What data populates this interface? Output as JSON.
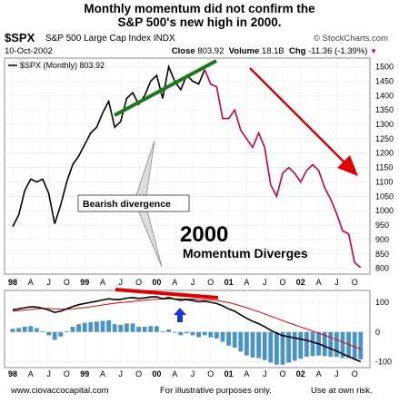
{
  "title_line1": "Monthly momentum did not confirm the",
  "title_line2": "S&P 500's new high in 2000.",
  "header": {
    "symbol": "$SPX",
    "name": "S&P 500 Large Cap Index INDX",
    "source": "© StockCharts.com",
    "date": "10-Oct-2002",
    "close_label": "Close",
    "close_value": "803.92",
    "volume_label": "Volume",
    "volume_value": "18.1B",
    "chg_label": "Chg",
    "chg_value": "-11.36 (-1.39%)",
    "chg_arrow": "▼"
  },
  "legend_label": "$SPX (Monthly) 803.92",
  "annotations": {
    "bearish": "Bearish divergence",
    "big_year": "2000",
    "momentum": "Momentum Diverges"
  },
  "footer": {
    "site": "www.ciovaccocapital.com",
    "illustrative": "For illustrative purposes only.",
    "risk": "Use at own risk."
  },
  "colors": {
    "price_black": "#000000",
    "price_red": "#cc0033",
    "trend_green": "#1a7a1a",
    "arrow_red": "#e00000",
    "blue_arrow": "#1a33dd",
    "momentum_signal": "#e00000",
    "histogram": "#4a93c8"
  },
  "chart_data": [
    {
      "type": "line",
      "x_tick_labels": [
        "98",
        "A",
        "J",
        "O",
        "99",
        "A",
        "J",
        "O",
        "00",
        "A",
        "J",
        "O",
        "01",
        "A",
        "J",
        "O",
        "02",
        "A",
        "J",
        "O"
      ],
      "y_tick_labels": [
        "1500",
        "1450",
        "1400",
        "1350",
        "1300",
        "1250",
        "1200",
        "1150",
        "1100",
        "1050",
        "1000",
        "950",
        "900",
        "850",
        "800"
      ],
      "ylim": [
        780,
        1530
      ],
      "log_scale": false,
      "grid": true,
      "months": 59,
      "series": [
        {
          "name": "$SPX (Monthly)",
          "values": [
            945,
            985,
            1070,
            1110,
            1100,
            1110,
            1060,
            955,
            1020,
            1100,
            1160,
            1190,
            1230,
            1270,
            1290,
            1340,
            1380,
            1290,
            1310,
            1390,
            1410,
            1370,
            1400,
            1450,
            1470,
            1390,
            1500,
            1450,
            1420,
            1470,
            1450,
            1440,
            1490,
            1440,
            1430,
            1320,
            1320,
            1350,
            1280,
            1250,
            1220,
            1270,
            1220,
            1090,
            1050,
            1130,
            1150,
            1130,
            1100,
            1140,
            1160,
            1140,
            1080,
            1040,
            990,
            930,
            920,
            820,
            803
          ]
        }
      ],
      "color_change_index": 32
    },
    {
      "type": "line",
      "x_tick_labels": [
        "98",
        "A",
        "J",
        "O",
        "99",
        "A",
        "J",
        "O",
        "00",
        "A",
        "J",
        "O",
        "01",
        "A",
        "J",
        "O",
        "02",
        "A",
        "J",
        "O"
      ],
      "y_tick_labels": [
        "100",
        "0",
        "-100"
      ],
      "ylim": [
        -120,
        140
      ],
      "series": [
        {
          "name": "momentum",
          "values": [
            75,
            78,
            82,
            85,
            84,
            80,
            74,
            66,
            70,
            78,
            86,
            92,
            96,
            100,
            104,
            108,
            112,
            109,
            110,
            114,
            116,
            113,
            115,
            118,
            119,
            112,
            116,
            111,
            107,
            109,
            106,
            102,
            104,
            100,
            96,
            88,
            78,
            70,
            58,
            46,
            36,
            28,
            18,
            6,
            -4,
            -12,
            -16,
            -20,
            -24,
            -28,
            -34,
            -40,
            -48,
            -56,
            -64,
            -74,
            -82,
            -92,
            -100
          ]
        },
        {
          "name": "signal",
          "values": [
            70,
            72,
            74,
            76,
            78,
            79,
            79,
            78,
            77,
            77,
            78,
            80,
            82,
            85,
            88,
            91,
            94,
            97,
            99,
            101,
            103,
            105,
            107,
            109,
            110,
            111,
            112,
            112,
            112,
            111,
            111,
            110,
            109,
            108,
            106,
            103,
            99,
            94,
            88,
            82,
            75,
            68,
            61,
            53,
            46,
            38,
            31,
            24,
            17,
            10,
            3,
            -4,
            -11,
            -18,
            -26,
            -34,
            -42,
            -50,
            -58
          ]
        }
      ]
    }
  ]
}
